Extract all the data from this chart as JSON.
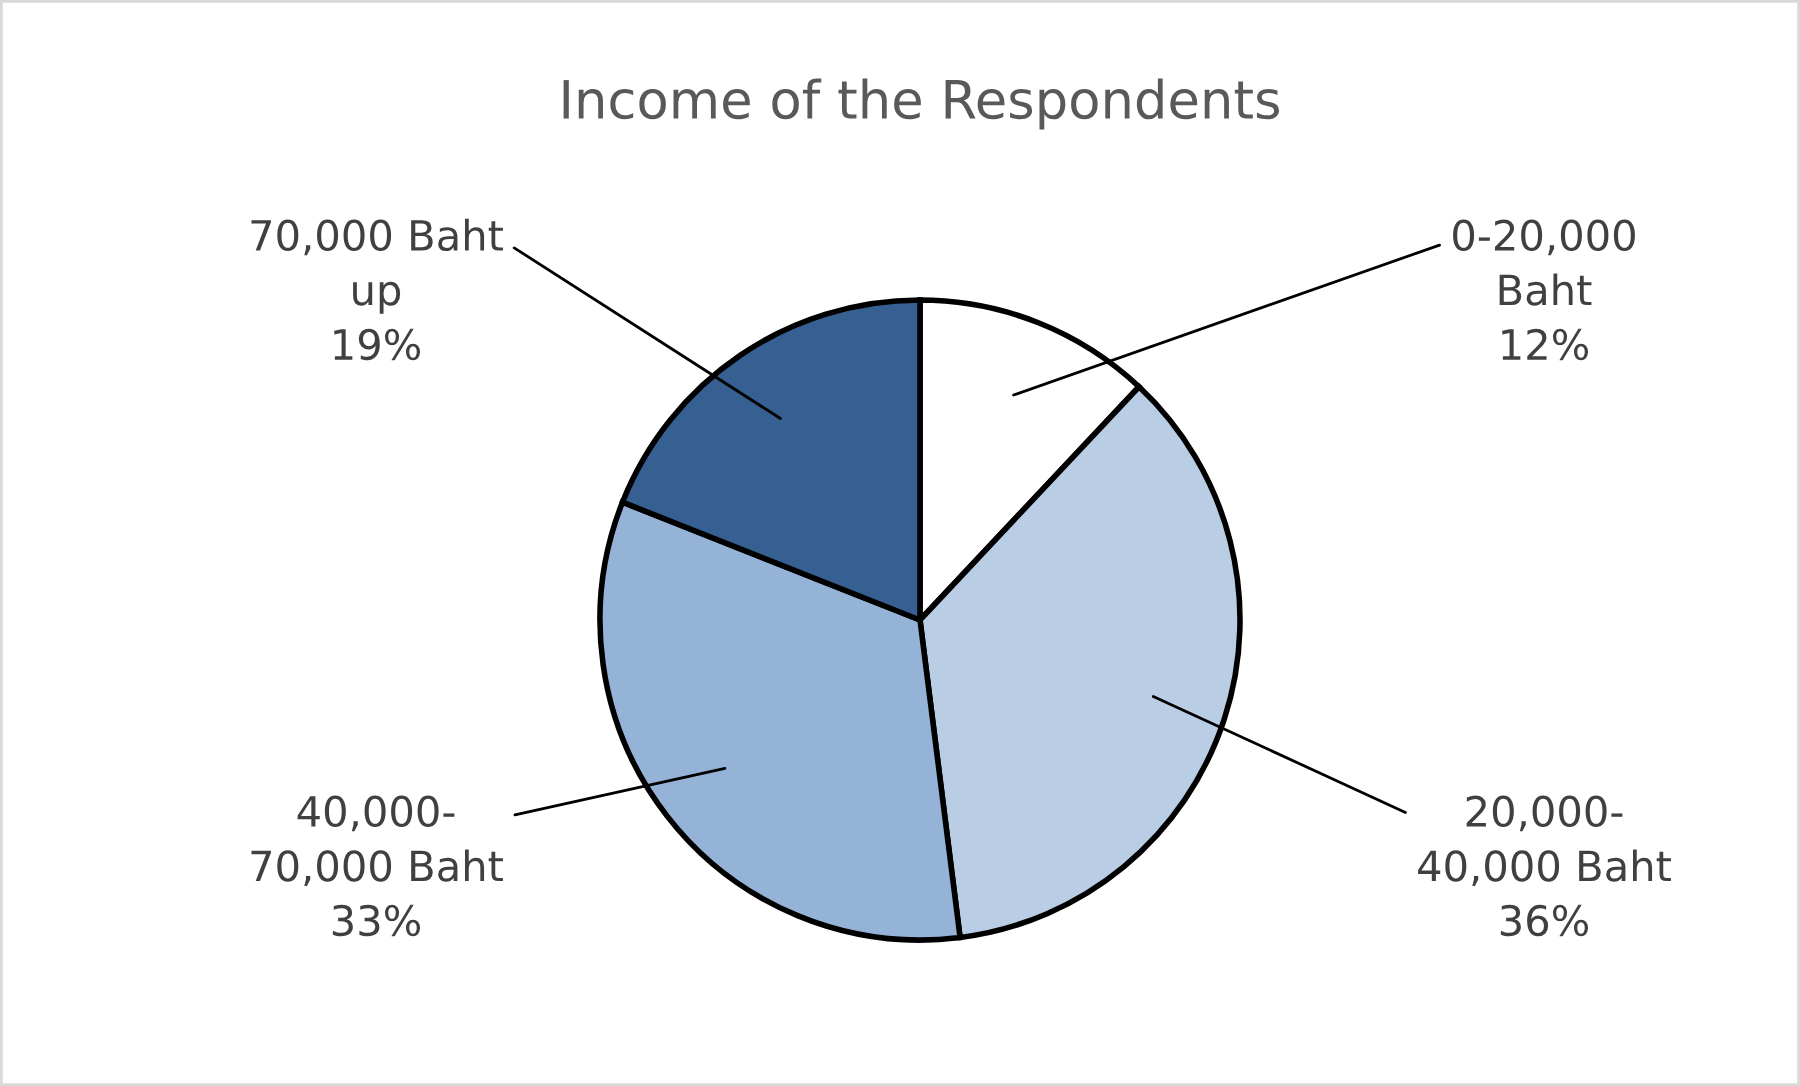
{
  "chart_data": {
    "type": "pie",
    "title": "Income of the Respondents",
    "categories": [
      "0-20,000\nBaht",
      "20,000-\n40,000 Baht",
      "40,000-\n70,000 Baht",
      "70,000 Baht\nup"
    ],
    "values": [
      12,
      36,
      33,
      19
    ],
    "colors": [
      "#ffffff",
      "#b9cde5",
      "#95b3d7",
      "#376092"
    ],
    "value_labels": [
      "12%",
      "36%",
      "33%",
      "19%"
    ],
    "legend": false
  }
}
